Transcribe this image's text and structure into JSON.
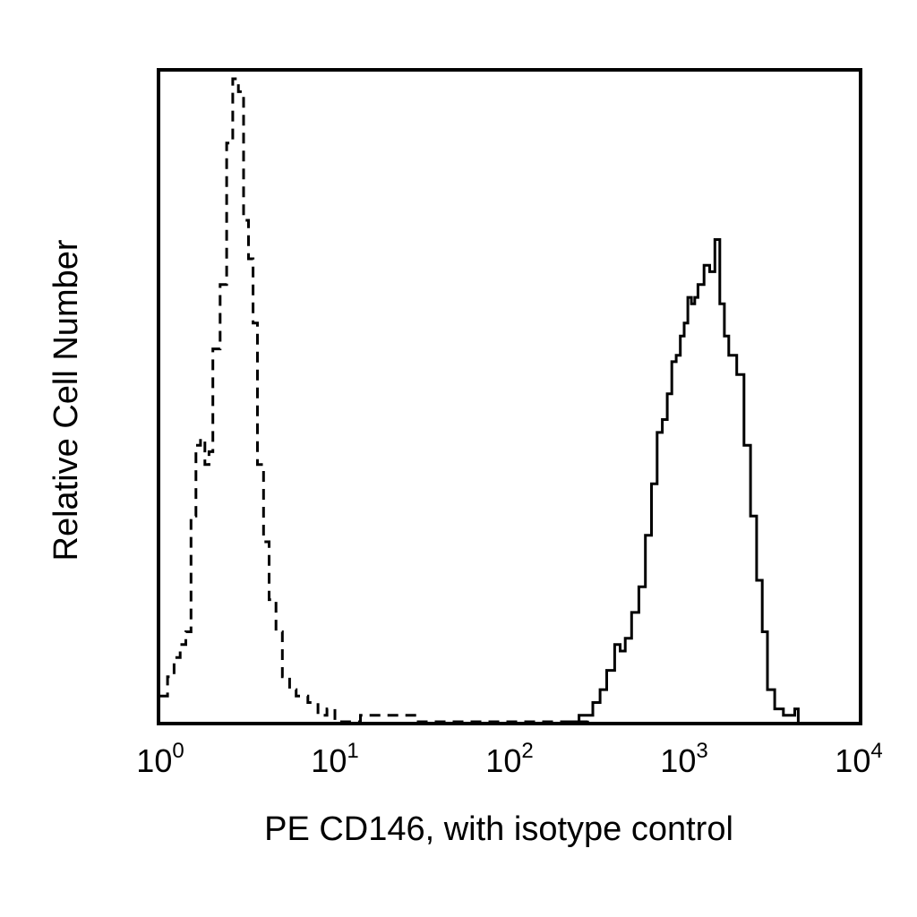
{
  "chart_data": {
    "type": "line",
    "chart_kind": "flow cytometry histogram overlay",
    "xlabel": "PE CD146, with isotype control",
    "ylabel": "Relative Cell Number",
    "x_scale": "log",
    "xlim": [
      1,
      10000
    ],
    "ylim": [
      0,
      100
    ],
    "y_ticks_shown": false,
    "grid": false,
    "legend": "none",
    "x_ticks": [
      {
        "value": 1,
        "base": "10",
        "exp": "0"
      },
      {
        "value": 10,
        "base": "10",
        "exp": "1"
      },
      {
        "value": 100,
        "base": "10",
        "exp": "2"
      },
      {
        "value": 1000,
        "base": "10",
        "exp": "3"
      },
      {
        "value": 10000,
        "base": "10",
        "exp": "4"
      }
    ],
    "series": [
      {
        "style": "dashed",
        "color": "#000000",
        "x": [
          1.0,
          1.1,
          1.2,
          1.3,
          1.4,
          1.5,
          1.6,
          1.7,
          1.8,
          1.9,
          2.0,
          2.2,
          2.4,
          2.6,
          2.8,
          3.0,
          3.2,
          3.4,
          3.6,
          3.9,
          4.2,
          4.6,
          5.0,
          5.5,
          6.0,
          7.0,
          8.0,
          9.0,
          10,
          14,
          20,
          30,
          60,
          100,
          200,
          280
        ],
        "y": [
          4,
          7,
          10,
          12,
          14,
          32,
          43,
          44,
          40,
          42,
          58,
          68,
          90,
          100,
          98,
          78,
          72,
          62,
          40,
          28,
          19,
          14,
          7,
          5,
          4,
          3,
          1,
          2,
          0,
          1,
          1,
          0,
          0,
          0,
          0,
          1
        ]
      },
      {
        "style": "solid",
        "color": "#000000",
        "x": [
          200,
          250,
          300,
          330,
          360,
          400,
          430,
          460,
          500,
          550,
          600,
          650,
          700,
          750,
          800,
          850,
          900,
          950,
          1000,
          1050,
          1100,
          1150,
          1200,
          1300,
          1400,
          1500,
          1600,
          1700,
          1800,
          2000,
          2200,
          2400,
          2600,
          2800,
          3000,
          3300,
          3700,
          4300,
          4500
        ],
        "y": [
          0,
          1,
          3,
          5,
          8,
          12,
          11,
          13,
          17,
          21,
          29,
          37,
          45,
          47,
          51,
          56,
          57,
          60,
          62,
          66,
          65,
          66,
          68,
          71,
          70,
          75,
          65,
          60,
          57,
          54,
          43,
          32,
          22,
          14,
          5,
          2,
          1,
          2,
          0
        ]
      }
    ]
  }
}
